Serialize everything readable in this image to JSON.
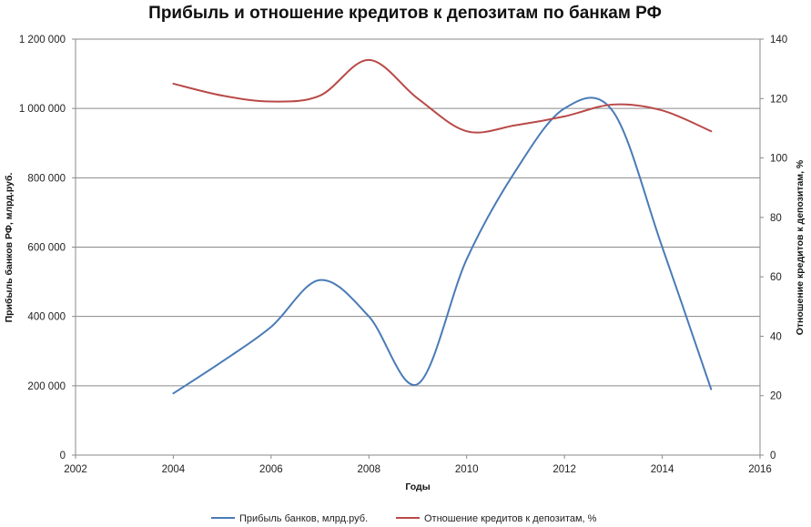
{
  "chart_data": {
    "type": "line",
    "title": "Прибыль и отношение кредитов к депозитам по банкам РФ",
    "xlabel": "Годы",
    "ylabel_left": "Прибыль банков РФ, млрд.руб.",
    "ylabel_right": "Отношение кредитов к депозитам, %",
    "xlim": [
      2002,
      2016
    ],
    "ylim_left": [
      0,
      1200000
    ],
    "ylim_right": [
      0,
      140
    ],
    "x_ticks": [
      "2002",
      "2004",
      "2006",
      "2008",
      "2010",
      "2012",
      "2014",
      "2016"
    ],
    "y_left_ticks": [
      "0",
      "200 000",
      "400 000",
      "600 000",
      "800 000",
      "1 000 000",
      "1 200 000"
    ],
    "y_right_ticks": [
      "0",
      "20",
      "40",
      "60",
      "80",
      "100",
      "120",
      "140"
    ],
    "grid": true,
    "legend_position": "bottom",
    "series": [
      {
        "name": "Прибыль банков, млрд.руб.",
        "axis": "left",
        "color": "#4a7bb7",
        "x": [
          2004,
          2005,
          2006,
          2007,
          2008,
          2009,
          2010,
          2011,
          2012,
          2013,
          2014,
          2015
        ],
        "y": [
          178000,
          270000,
          370000,
          505000,
          400000,
          205000,
          565000,
          820000,
          1000000,
          990000,
          600000,
          190000
        ]
      },
      {
        "name": "Отношение кредитов к депозитам, %",
        "axis": "right",
        "color": "#b94a48",
        "x": [
          2004,
          2005,
          2006,
          2007,
          2008,
          2009,
          2010,
          2011,
          2012,
          2013,
          2014,
          2015
        ],
        "y": [
          125,
          121,
          119,
          121,
          133,
          120,
          109,
          111,
          114,
          118,
          116,
          109
        ]
      }
    ]
  }
}
